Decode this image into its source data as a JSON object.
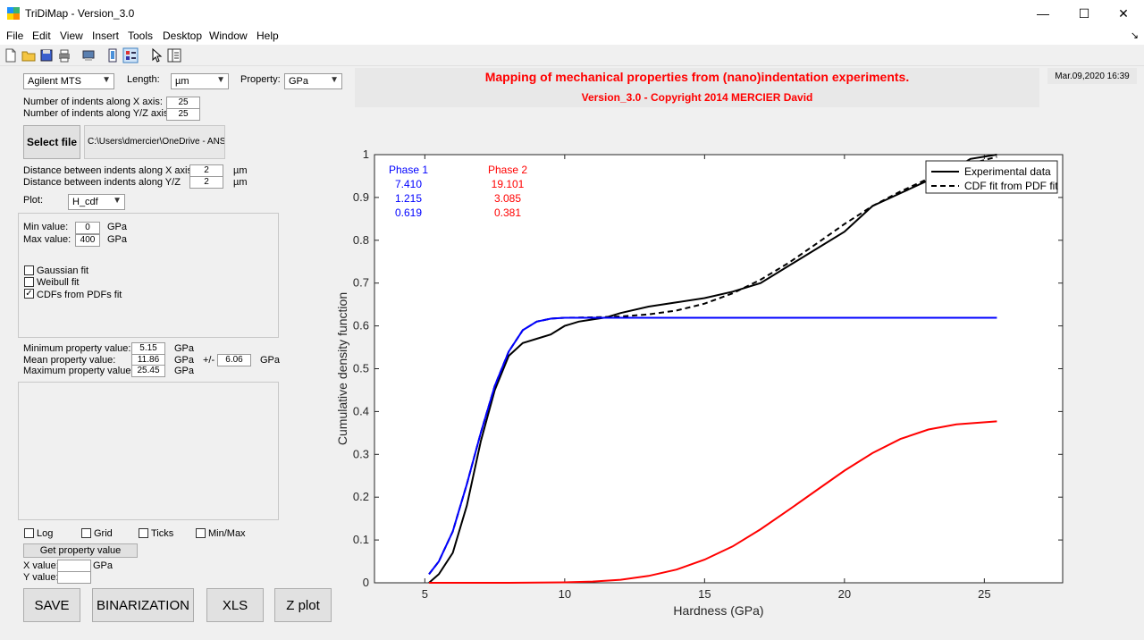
{
  "window": {
    "title": "TriDiMap - Version_3.0",
    "controls": {
      "minimize": "—",
      "maximize": "☐",
      "close": "✕"
    }
  },
  "menu": [
    "File",
    "Edit",
    "View",
    "Insert",
    "Tools",
    "Desktop",
    "Window",
    "Help"
  ],
  "menu_overflow": "↘",
  "toolbar_icons": [
    "new-file-icon",
    "open-folder-icon",
    "save-icon",
    "print-icon",
    "print-preview-icon",
    "toggle-view-icon",
    "property-editor-icon",
    "pointer-icon",
    "plot-browser-icon"
  ],
  "left": {
    "instrument": "Agilent MTS",
    "length_label": "Length:",
    "length_unit": "µm",
    "property_label": "Property:",
    "property_unit": "GPa",
    "indents_x_label": "Number of indents along X axis:",
    "indents_x": "25",
    "indents_y_label": "Number of indents along Y/Z axis:",
    "indents_y": "25",
    "select_file": "Select file",
    "file_path": "C:\\Users\\dmercier\\OneDrive - ANSY",
    "dist_x_label": "Distance between indents along X axis:",
    "dist_x": "2",
    "dist_y_label": "Distance between indents along Y/Z",
    "dist_y": "2",
    "dist_unit": "µm",
    "plot_label": "Plot:",
    "plot_value": "H_cdf",
    "min_label": "Min value:",
    "min_value": "0",
    "max_label": "Max value:",
    "max_value": "400",
    "gpa": "GPa",
    "fits": [
      {
        "label": "Gaussian fit",
        "checked": ""
      },
      {
        "label": "Weibull fit",
        "checked": ""
      },
      {
        "label": "CDFs from PDFs fit",
        "checked": "✓"
      }
    ],
    "min_prop_label": "Minimum property value:",
    "min_prop": "5.15",
    "mean_prop_label": "Mean property value:",
    "mean_prop": "11.86",
    "pm": "+/-",
    "std_prop": "6.06",
    "max_prop_label": "Maximum property value:",
    "max_prop": "25.45",
    "options": [
      {
        "label": "Log",
        "checked": ""
      },
      {
        "label": "Grid",
        "checked": ""
      },
      {
        "label": "Ticks",
        "checked": ""
      },
      {
        "label": "Min/Max",
        "checked": ""
      }
    ],
    "get_property": "Get property value",
    "x_value_label": "X value:",
    "y_value_label": "Y value:",
    "buttons": [
      "SAVE",
      "BINARIZATION",
      "XLS",
      "Z plot"
    ]
  },
  "header": {
    "title": "Mapping of mechanical properties from (nano)indentation experiments.",
    "subtitle": "Version_3.0 - Copyright 2014 MERCIER David",
    "date": "Mar.09,2020 16:39"
  },
  "colors": {
    "phase1": "#0000ff",
    "phase2": "#ff0000",
    "exp": "#000000"
  },
  "chart_data": {
    "type": "line",
    "xlabel": "Hardness (GPa)",
    "ylabel": "Cumulative density function",
    "xlim": [
      3.2,
      27.8
    ],
    "ylim": [
      0,
      1
    ],
    "xticks": [
      5,
      10,
      15,
      20,
      25
    ],
    "yticks": [
      0,
      0.1,
      0.2,
      0.3,
      0.4,
      0.5,
      0.6,
      0.7,
      0.8,
      0.9,
      1
    ],
    "legend": {
      "placement": "top-right",
      "entries": [
        "Experimental data",
        "CDF fit from PDF fit"
      ]
    },
    "phase_table": [
      {
        "name": "Phase 1",
        "values": [
          "7.410",
          "1.215",
          "0.619"
        ]
      },
      {
        "name": "Phase 2",
        "values": [
          "19.101",
          "3.085",
          "0.381"
        ]
      }
    ],
    "series": [
      {
        "name": "Experimental data",
        "style": "solid",
        "x": [
          5.15,
          5.5,
          6.0,
          6.5,
          7.0,
          7.5,
          8.0,
          8.5,
          9.0,
          9.5,
          10.0,
          10.5,
          11.0,
          11.5,
          12.0,
          13.0,
          14.0,
          15.0,
          16.0,
          17.0,
          18.0,
          19.0,
          20.0,
          20.5,
          21.0,
          22.0,
          23.0,
          24.0,
          24.5,
          25.45
        ],
        "y": [
          0.0,
          0.02,
          0.07,
          0.18,
          0.33,
          0.45,
          0.53,
          0.56,
          0.57,
          0.58,
          0.6,
          0.61,
          0.615,
          0.62,
          0.63,
          0.645,
          0.655,
          0.665,
          0.68,
          0.7,
          0.74,
          0.78,
          0.82,
          0.85,
          0.88,
          0.91,
          0.94,
          0.97,
          0.99,
          1.0
        ]
      },
      {
        "name": "CDF fit from PDF fit",
        "style": "dashed",
        "x": [
          5.15,
          5.5,
          6.0,
          6.5,
          7.0,
          7.5,
          8.0,
          8.5,
          9.0,
          9.5,
          10.0,
          11.0,
          12.0,
          13.0,
          14.0,
          15.0,
          16.0,
          17.0,
          18.0,
          19.0,
          20.0,
          21.0,
          22.0,
          23.0,
          24.0,
          25.45
        ],
        "y": [
          0.02,
          0.05,
          0.12,
          0.23,
          0.35,
          0.46,
          0.54,
          0.59,
          0.61,
          0.617,
          0.619,
          0.62,
          0.622,
          0.627,
          0.636,
          0.652,
          0.676,
          0.708,
          0.747,
          0.792,
          0.838,
          0.88,
          0.914,
          0.944,
          0.97,
          0.995
        ]
      },
      {
        "name": "Phase 1",
        "style": "solid",
        "x": [
          5.15,
          5.5,
          6.0,
          6.5,
          7.0,
          7.5,
          8.0,
          8.5,
          9.0,
          9.5,
          10.0,
          11.0,
          12.0,
          14.0,
          16.0,
          18.0,
          20.0,
          22.0,
          25.45
        ],
        "y": [
          0.02,
          0.05,
          0.12,
          0.23,
          0.35,
          0.46,
          0.54,
          0.59,
          0.61,
          0.617,
          0.619,
          0.619,
          0.619,
          0.619,
          0.619,
          0.619,
          0.619,
          0.619,
          0.619
        ]
      },
      {
        "name": "Phase 2",
        "style": "solid",
        "x": [
          5.15,
          8.0,
          10.0,
          11.0,
          12.0,
          13.0,
          14.0,
          15.0,
          16.0,
          17.0,
          18.0,
          19.0,
          20.0,
          21.0,
          22.0,
          23.0,
          24.0,
          25.45
        ],
        "y": [
          0.0,
          0.0,
          0.001,
          0.003,
          0.007,
          0.016,
          0.031,
          0.054,
          0.085,
          0.125,
          0.17,
          0.216,
          0.262,
          0.303,
          0.336,
          0.358,
          0.37,
          0.377
        ]
      }
    ]
  }
}
